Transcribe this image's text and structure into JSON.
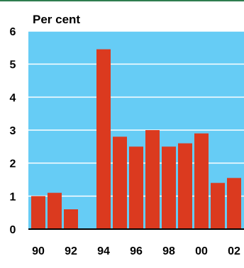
{
  "colors": {
    "top_rule": "#2e7d4f",
    "plot_background": "#66ccf5",
    "gridline": "#ffffff",
    "bar": "#db3a1f",
    "axis": "#000000",
    "text": "#000000"
  },
  "chart_data": {
    "type": "bar",
    "ylabel": "Per cent",
    "ylim": [
      0,
      6
    ],
    "yticks": [
      0,
      1,
      2,
      3,
      4,
      5,
      6
    ],
    "grid": true,
    "categories": [
      "1990",
      "1991",
      "1992",
      "1993",
      "1994",
      "1995",
      "1996",
      "1997",
      "1998",
      "1999",
      "2000",
      "2001",
      "2002"
    ],
    "values": [
      1.0,
      1.1,
      0.6,
      null,
      5.45,
      2.8,
      2.5,
      3.0,
      2.5,
      2.6,
      2.9,
      1.4,
      1.55
    ],
    "xtick_labels": [
      {
        "index": 0,
        "label": "90"
      },
      {
        "index": 2,
        "label": "92"
      },
      {
        "index": 4,
        "label": "94"
      },
      {
        "index": 6,
        "label": "96"
      },
      {
        "index": 8,
        "label": "98"
      },
      {
        "index": 10,
        "label": "00"
      },
      {
        "index": 12,
        "label": "02"
      }
    ]
  }
}
